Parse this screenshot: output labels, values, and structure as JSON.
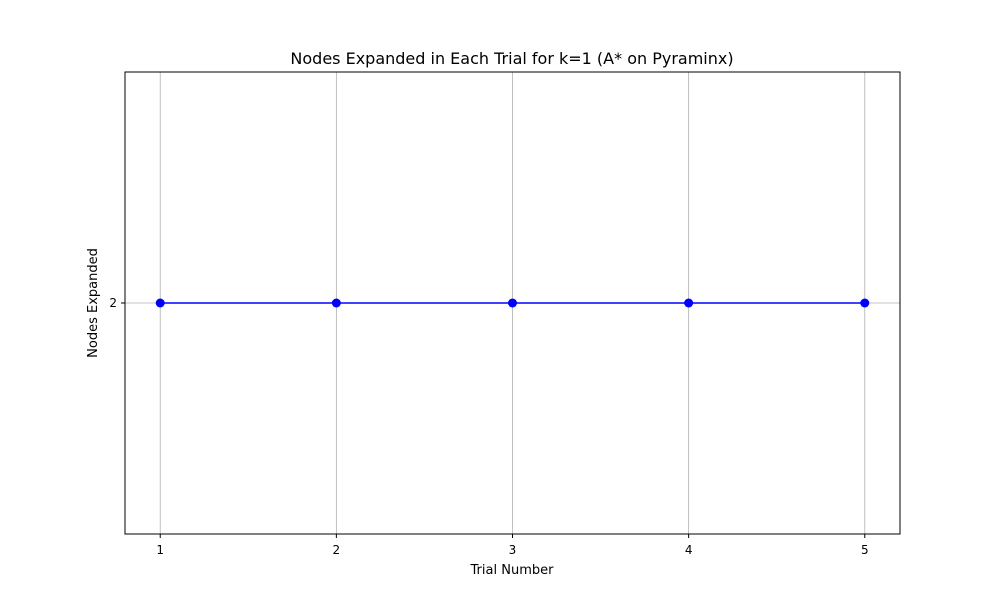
{
  "chart_data": {
    "type": "line",
    "title": "Nodes Expanded in Each Trial for k=1 (A* on Pyraminx)",
    "xlabel": "Trial Number",
    "ylabel": "Nodes Expanded",
    "x": [
      1,
      2,
      3,
      4,
      5
    ],
    "series": [
      {
        "name": "Nodes Expanded",
        "values": [
          2,
          2,
          2,
          2,
          2
        ],
        "color": "#0000ff",
        "marker": "circle"
      }
    ],
    "xticks": [
      1,
      2,
      3,
      4,
      5
    ],
    "yticks": [
      2
    ],
    "xlim": [
      0.8,
      5.2
    ],
    "ylim": [
      1.5,
      2.5
    ],
    "grid": true,
    "colors": {
      "line": "#0000ff",
      "grid": "#b0b0b0",
      "axes": "#000000"
    }
  }
}
